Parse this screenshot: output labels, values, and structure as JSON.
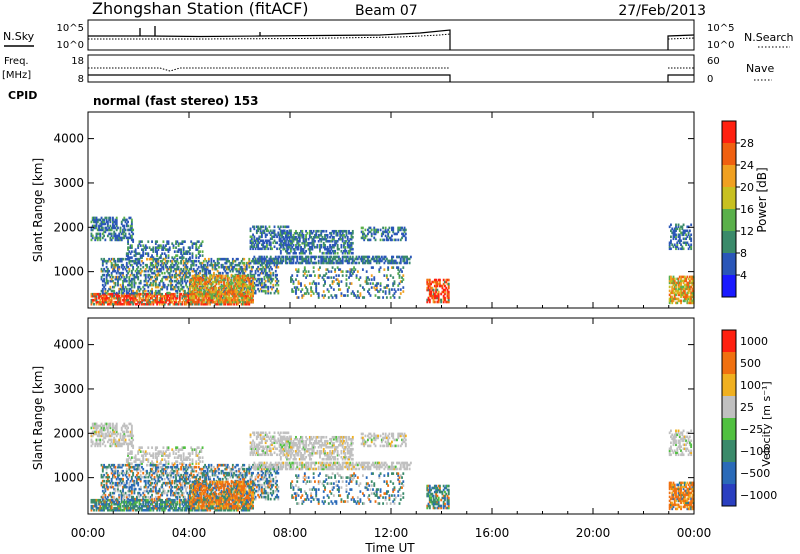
{
  "header": {
    "station_title": "Zhongshan Station (fitACF)",
    "beam": "Beam 07",
    "date": "27/Feb/2013"
  },
  "panels": {
    "nsky": {
      "label": "N.Sky",
      "tick_top": "10^5",
      "tick_bottom": "10^0",
      "right_label": "N.Search",
      "right_tick_top": "10^5",
      "right_tick_bottom": "10^0"
    },
    "freq": {
      "label_line1": "Freq.",
      "label_line2": "[MHz]",
      "tick_top": "18",
      "tick_bottom": "8",
      "right_label": "Nave",
      "right_tick_top": "60",
      "right_tick_bottom": "0"
    },
    "cpid": {
      "label": "CPID",
      "value": "normal (fast stereo) 153"
    }
  },
  "colors": {
    "power": [
      "#1a1aff",
      "#2a56b8",
      "#3a8a6a",
      "#5ab04a",
      "#c8c020",
      "#f0a020",
      "#f06010",
      "#ff2010"
    ],
    "velocity": [
      "#2a3fc0",
      "#2a6ab8",
      "#3a8a6a",
      "#50c040",
      "#c0c0c0",
      "#f0b020",
      "#f07010",
      "#ff2010"
    ]
  },
  "chart_data": [
    {
      "type": "heatmap",
      "name": "Power",
      "ylabel": "Slant Range [km]",
      "y_ticks": [
        "1000",
        "2000",
        "3000",
        "4000"
      ],
      "colorbar_label": "Power [dB]",
      "colorbar_ticks": [
        "4",
        "8",
        "12",
        "16",
        "20",
        "24",
        "28"
      ],
      "ylim": [
        180,
        4600
      ]
    },
    {
      "type": "heatmap",
      "name": "Velocity",
      "ylabel": "Slant Range [km]",
      "y_ticks": [
        "1000",
        "2000",
        "3000",
        "4000"
      ],
      "colorbar_label": "Velocity [m s⁻¹]",
      "colorbar_ticks": [
        "1000",
        "500",
        "100",
        "25",
        "−25",
        "−100",
        "−500",
        "−1000"
      ],
      "x_ticks": [
        "00:00",
        "04:00",
        "08:00",
        "12:00",
        "16:00",
        "20:00",
        "00:00"
      ],
      "xlabel": "Time UT",
      "xlim_hours": [
        0,
        24
      ],
      "ylim": [
        180,
        4600
      ]
    }
  ]
}
